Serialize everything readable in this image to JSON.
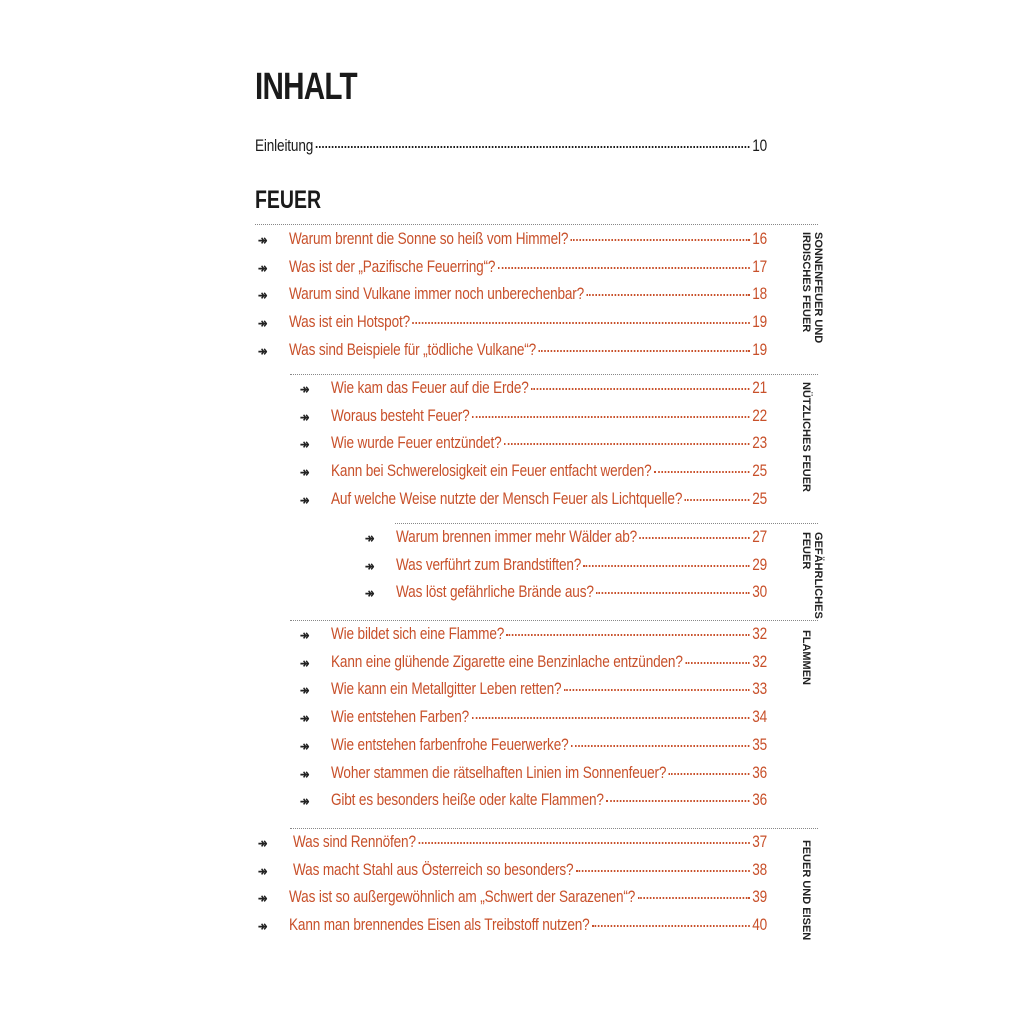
{
  "title": "INHALT",
  "intro": {
    "label": "Einleitung",
    "page": "10"
  },
  "chapter": "FEUER",
  "accent_color": "#c8502a",
  "arrow_icon": "double-arrow-right",
  "groups": [
    {
      "label": "SONNENFEUER UND IRDISCHES FEUER",
      "items": [
        {
          "text": "Warum brennt die Sonne so heiß vom Himmel?",
          "page": "16"
        },
        {
          "text": "Was ist der „Pazifische Feuerring“?",
          "page": "17"
        },
        {
          "text": "Warum sind Vulkane immer noch unberechenbar?",
          "page": "18"
        },
        {
          "text": "Was ist ein Hotspot?",
          "page": "19"
        },
        {
          "text": "Was sind Beispiele für „tödliche Vulkane“?",
          "page": "19"
        }
      ]
    },
    {
      "label": "NÜTZLICHES FEUER",
      "items": [
        {
          "text": "Wie kam das Feuer auf die Erde?",
          "page": "21"
        },
        {
          "text": "Woraus besteht Feuer?",
          "page": "22"
        },
        {
          "text": "Wie wurde Feuer entzündet?",
          "page": "23"
        },
        {
          "text": "Kann bei Schwerelosigkeit ein Feuer entfacht werden?",
          "page": "25"
        },
        {
          "text": "Auf welche Weise nutzte der Mensch Feuer als Lichtquelle?",
          "page": "25"
        }
      ]
    },
    {
      "label": "GEFÄHRLICHES FEUER",
      "items": [
        {
          "text": "Warum brennen immer mehr Wälder ab?",
          "page": "27"
        },
        {
          "text": "Was verführt zum Brandstiften?",
          "page": "29"
        },
        {
          "text": "Was löst gefährliche Brände aus?",
          "page": "30"
        }
      ]
    },
    {
      "label": "FLAMMEN",
      "items": [
        {
          "text": "Wie bildet sich eine Flamme?",
          "page": "32"
        },
        {
          "text": "Kann eine glühende Zigarette eine Benzinlache entzünden?",
          "page": "32"
        },
        {
          "text": "Wie kann ein Metallgitter Leben retten?",
          "page": "33"
        },
        {
          "text": "Wie entstehen Farben?",
          "page": "34"
        },
        {
          "text": "Wie entstehen farbenfrohe Feuerwerke?",
          "page": "35"
        },
        {
          "text": "Woher stammen die rätselhaften Linien im Sonnenfeuer?",
          "page": "36"
        },
        {
          "text": "Gibt es besonders heiße oder kalte Flammen?",
          "page": "36"
        }
      ]
    },
    {
      "label": "FEUER UND EISEN",
      "items": [
        {
          "text": "Was sind Rennöfen?",
          "page": "37"
        },
        {
          "text": "Was macht Stahl aus Österreich so besonders?",
          "page": "38"
        },
        {
          "text": "Was ist so außergewöhnlich am „Schwert der Sarazenen“?",
          "page": "39"
        },
        {
          "text": "Kann man brennendes Eisen als Treibstoff nutzen?",
          "page": "40"
        }
      ]
    }
  ]
}
